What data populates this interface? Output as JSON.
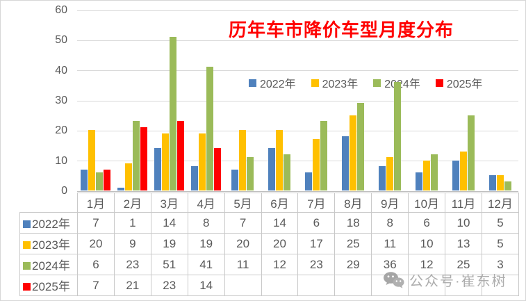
{
  "chart_data": {
    "type": "bar",
    "title": "历年车市降价车型月度分布",
    "title_color": "#FF0000",
    "categories": [
      "1月",
      "2月",
      "3月",
      "4月",
      "5月",
      "6月",
      "7月",
      "8月",
      "9月",
      "10月",
      "11月",
      "12月"
    ],
    "series": [
      {
        "name": "2022年",
        "color": "#4F81BD",
        "values": [
          7,
          1,
          14,
          8,
          7,
          14,
          6,
          18,
          8,
          6,
          10,
          5
        ]
      },
      {
        "name": "2023年",
        "color": "#FFC000",
        "values": [
          20,
          9,
          19,
          19,
          20,
          20,
          17,
          25,
          11,
          10,
          13,
          5
        ]
      },
      {
        "name": "2024年",
        "color": "#9BBB59",
        "values": [
          6,
          23,
          51,
          41,
          11,
          12,
          23,
          29,
          36,
          12,
          25,
          3
        ]
      },
      {
        "name": "2025年",
        "color": "#FF0000",
        "values": [
          7,
          21,
          23,
          14,
          null,
          null,
          null,
          null,
          null,
          null,
          null,
          null
        ]
      }
    ],
    "ylim": [
      0,
      60
    ],
    "yticks": [
      0,
      10,
      20,
      30,
      40,
      50,
      60
    ],
    "grid": true,
    "legend_position": "inside-upper-right",
    "data_table_shown": true
  },
  "watermark": {
    "text": "公众号·崔东树",
    "icon": "wechat-icon"
  }
}
